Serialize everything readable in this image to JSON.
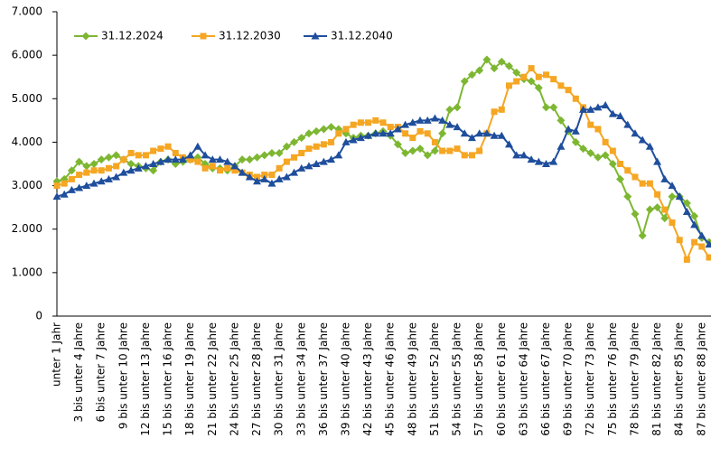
{
  "chart_data": {
    "type": "line",
    "categories": [
      "unter 1 Jahr",
      null,
      null,
      "3 bis unter 4 Jahre",
      null,
      null,
      "6 bis unter 7 Jahre",
      null,
      null,
      "9 bis unter 10 Jahre",
      null,
      null,
      "12 bis unter 13 Jahre",
      null,
      null,
      "15 bis unter 16 Jahre",
      null,
      null,
      "18 bis unter 19 Jahre",
      null,
      null,
      "21 bis unter 22 Jahre",
      null,
      null,
      "24 bis unter 25 Jahre",
      null,
      null,
      "27 bis unter 28 Jahre",
      null,
      null,
      "30 bis unter 31 Jahre",
      null,
      null,
      "33 bis unter 34 Jahre",
      null,
      null,
      "36 bis unter 37 Jahre",
      null,
      null,
      "39 bis unter 40 Jahre",
      null,
      null,
      "42 bis unter 43 Jahre",
      null,
      null,
      "45 bis unter 46 Jahre",
      null,
      null,
      "48 bis unter 49 Jahre",
      null,
      null,
      "51 bis unter 52 Jahre",
      null,
      null,
      "54 bis unter 55 Jahre",
      null,
      null,
      "57 bis unter 58 Jahre",
      null,
      null,
      "60 bis unter 61 Jahre",
      null,
      null,
      "63 bis unter 64 Jahre",
      null,
      null,
      "66 bis unter 67 Jahre",
      null,
      null,
      "69 bis unter 70 Jahre",
      null,
      null,
      "72 bis unter 73 Jahre",
      null,
      null,
      "75 bis unter 76 Jahre",
      null,
      null,
      "78 bis unter 79 Jahre",
      null,
      null,
      "81 bis unter 82 Jahre",
      null,
      null,
      "84 bis unter 85 Jahre",
      null,
      null,
      "87 bis unter 88 Jahre",
      null
    ],
    "series": [
      {
        "name": "31.12.2024",
        "color": "#7db732",
        "marker": "diamond",
        "values": [
          3100,
          3150,
          3350,
          3550,
          3450,
          3500,
          3600,
          3650,
          3700,
          3600,
          3500,
          3450,
          3400,
          3350,
          3550,
          3600,
          3500,
          3550,
          3600,
          3650,
          3500,
          3400,
          3400,
          3350,
          3450,
          3600,
          3600,
          3650,
          3700,
          3750,
          3750,
          3900,
          4000,
          4100,
          4200,
          4250,
          4300,
          4350,
          4300,
          4200,
          4100,
          4150,
          4150,
          4200,
          4250,
          4150,
          3950,
          3750,
          3800,
          3850,
          3700,
          3800,
          4200,
          4750,
          4800,
          5400,
          5550,
          5650,
          5900,
          5700,
          5850,
          5750,
          5600,
          5450,
          5400,
          5250,
          4800,
          4800,
          4500,
          4250,
          4000,
          3850,
          3750,
          3650,
          3700,
          3500,
          3150,
          2750,
          2350,
          1850,
          2450,
          2500,
          2250,
          2750,
          2750,
          2600,
          2300,
          1800,
          1700
        ]
      },
      {
        "name": "31.12.2030",
        "color": "#f5a623",
        "marker": "square",
        "values": [
          3000,
          3050,
          3150,
          3250,
          3300,
          3350,
          3350,
          3400,
          3450,
          3600,
          3750,
          3700,
          3700,
          3800,
          3850,
          3900,
          3750,
          3650,
          3600,
          3550,
          3400,
          3450,
          3350,
          3400,
          3350,
          3300,
          3250,
          3200,
          3250,
          3250,
          3400,
          3550,
          3650,
          3750,
          3850,
          3900,
          3950,
          4000,
          4200,
          4300,
          4400,
          4450,
          4450,
          4500,
          4450,
          4350,
          4350,
          4200,
          4100,
          4250,
          4200,
          4000,
          3800,
          3800,
          3850,
          3700,
          3700,
          3800,
          4200,
          4700,
          4750,
          5300,
          5400,
          5500,
          5700,
          5500,
          5550,
          5450,
          5300,
          5200,
          5000,
          4800,
          4400,
          4300,
          4000,
          3800,
          3500,
          3350,
          3200,
          3050,
          3050,
          2800,
          2450,
          2150,
          1750,
          1300,
          1700,
          1600,
          1350
        ]
      },
      {
        "name": "31.12.2040",
        "color": "#1f4e9c",
        "marker": "triangle",
        "values": [
          2750,
          2800,
          2900,
          2950,
          3000,
          3050,
          3100,
          3150,
          3200,
          3300,
          3350,
          3400,
          3450,
          3500,
          3550,
          3600,
          3600,
          3600,
          3700,
          3900,
          3700,
          3600,
          3600,
          3550,
          3450,
          3300,
          3200,
          3100,
          3150,
          3050,
          3150,
          3200,
          3300,
          3400,
          3450,
          3500,
          3550,
          3600,
          3700,
          4000,
          4050,
          4100,
          4150,
          4200,
          4200,
          4200,
          4300,
          4400,
          4450,
          4500,
          4500,
          4550,
          4500,
          4400,
          4350,
          4200,
          4100,
          4200,
          4200,
          4150,
          4150,
          3950,
          3700,
          3700,
          3600,
          3550,
          3500,
          3550,
          3900,
          4300,
          4250,
          4750,
          4750,
          4800,
          4850,
          4650,
          4600,
          4400,
          4200,
          4050,
          3900,
          3550,
          3150,
          3000,
          2750,
          2400,
          2100,
          1850,
          1650
        ]
      }
    ],
    "ylim": [
      0,
      7000
    ],
    "yticks": [
      0,
      {
        "value": 1000,
        "label": "1.000"
      },
      {
        "value": 2000,
        "label": "2.000"
      },
      {
        "value": 3000,
        "label": "3.000"
      },
      {
        "value": 4000,
        "label": "4.000"
      },
      {
        "value": 5000,
        "label": "5.000"
      },
      {
        "value": 6000,
        "label": "6.000"
      },
      {
        "value": 7000,
        "label": "7.000"
      }
    ],
    "grid": false,
    "legend": "top"
  }
}
